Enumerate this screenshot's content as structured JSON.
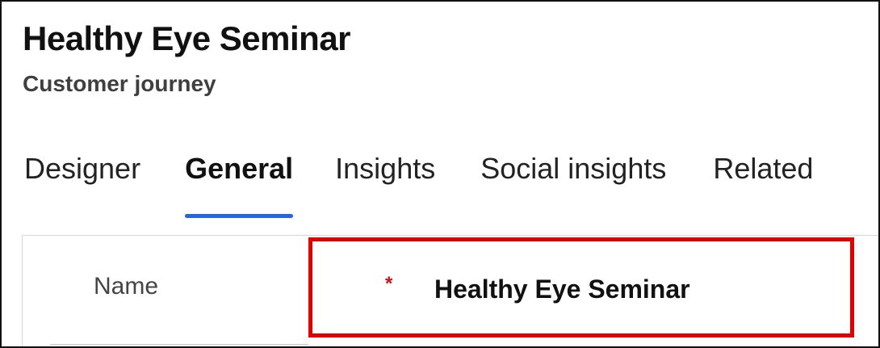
{
  "header": {
    "title": "Healthy Eye Seminar",
    "subtitle": "Customer journey"
  },
  "tabs": [
    {
      "label": "Designer",
      "active": false
    },
    {
      "label": "General",
      "active": true
    },
    {
      "label": "Insights",
      "active": false
    },
    {
      "label": "Social insights",
      "active": false
    },
    {
      "label": "Related",
      "active": false
    }
  ],
  "form": {
    "name_label": "Name",
    "required_marker": "*",
    "name_value": "Healthy Eye Seminar"
  },
  "colors": {
    "accent": "#2266e3",
    "highlight": "#e00000",
    "required": "#d01010"
  }
}
